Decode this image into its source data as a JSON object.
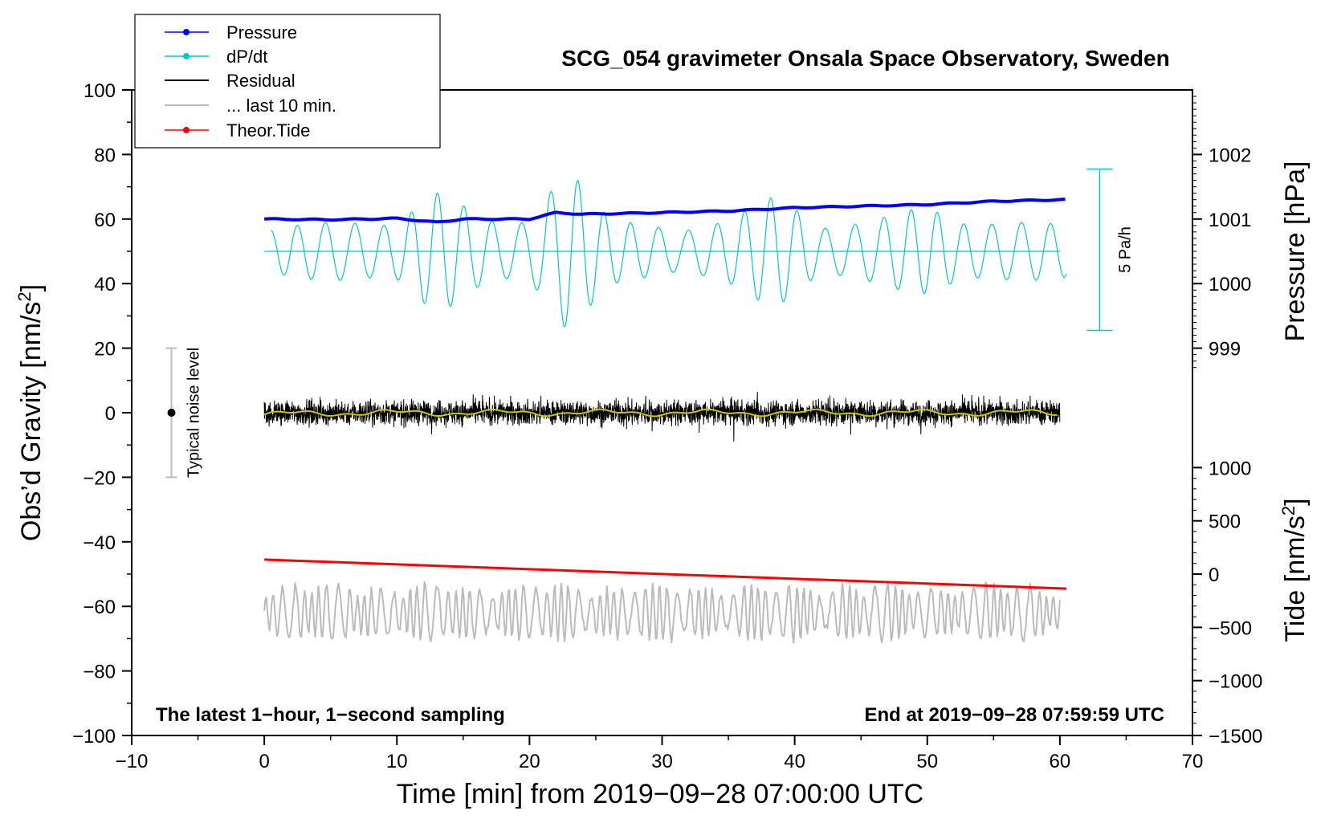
{
  "chart_data": {
    "type": "line",
    "title": "SCG_054 gravimeter Onsala Space Observatory, Sweden",
    "xlabel": "Time [min] from 2019−09−28 07:00:00 UTC",
    "ylabel_left_prefix": "Obs’d Gravity [nm/s",
    "ylabel_left_sup": "2",
    "ylabel_left_suffix": "]",
    "ylabel_right_top": "Pressure [hPa]",
    "ylabel_right_bottom_prefix": "Tide [nm/s",
    "ylabel_right_bottom_sup": "2",
    "ylabel_right_bottom_suffix": "]",
    "xlim": [
      -10,
      70
    ],
    "ylim": [
      -100,
      100
    ],
    "x_ticks": [
      -10,
      0,
      10,
      20,
      30,
      40,
      50,
      60,
      70
    ],
    "x_tick_labels": [
      "−10",
      "0",
      "10",
      "20",
      "30",
      "40",
      "50",
      "60",
      "70"
    ],
    "y_ticks": [
      -100,
      -80,
      -60,
      -40,
      -20,
      0,
      20,
      40,
      60,
      80,
      100
    ],
    "y_tick_labels": [
      "−100",
      "−80",
      "−60",
      "−40",
      "−20",
      "0",
      "20",
      "40",
      "60",
      "80",
      "100"
    ],
    "pressure_axis": {
      "ticks_hpa": [
        999,
        1000,
        1001,
        1002
      ],
      "tick_labels": [
        "999",
        "1000",
        "1001",
        "1002"
      ],
      "gravity_at_ticks": [
        20,
        40,
        60,
        80
      ]
    },
    "tide_axis": {
      "ticks": [
        -1500,
        -1000,
        -500,
        0,
        500,
        1000
      ],
      "tick_labels": [
        "−1500",
        "−1000",
        "−500",
        "0",
        "500",
        "1000"
      ],
      "gravity_at_ticks": [
        -100,
        -83,
        -66.5,
        -50,
        -33.5,
        -17
      ]
    },
    "legend": [
      {
        "label": "Pressure",
        "color": "#0000ff",
        "marker": true
      },
      {
        "label": "dP/dt",
        "color": "#00c8c8",
        "marker": true
      },
      {
        "label": "Residual",
        "color": "#000000",
        "marker": false
      },
      {
        "label": "... last 10 min.",
        "color": "#bbbbbb",
        "marker": false
      },
      {
        "label": "Theor.Tide",
        "color": "#ff0000",
        "marker": true
      }
    ],
    "series": [
      {
        "name": "Pressure",
        "color": "#0000ff",
        "x": [
          0,
          5,
          10,
          13,
          15,
          20,
          22,
          24,
          30,
          35,
          40,
          45,
          50,
          55,
          60
        ],
        "y": [
          60,
          59.8,
          60.2,
          59,
          60,
          60,
          62,
          61.5,
          62,
          62.5,
          63.5,
          64,
          64.5,
          65.5,
          66
        ]
      },
      {
        "name": "dP/dt",
        "color": "#00c8c8",
        "baseline": 50,
        "x_start": 0.5,
        "x_end": 60.5
      },
      {
        "name": "Residual",
        "color": "#000000",
        "center": 0,
        "amplitude": 8,
        "x_start": 0,
        "x_end": 60
      },
      {
        "name": "Residual smoothed",
        "color": "#c8c800",
        "center": 0
      },
      {
        "name": "... last 10 min.",
        "color": "#bbbbbb",
        "center": -62,
        "x_start": 0,
        "x_end": 60
      },
      {
        "name": "Theor.Tide",
        "color": "#ff0000",
        "x": [
          0,
          60.5
        ],
        "y": [
          -45.5,
          -54.5
        ]
      }
    ],
    "dpdt_scale_bar": {
      "label": "5 Pa/h",
      "x": 63,
      "y_top": 75.5,
      "y_bottom": 25.5
    },
    "noise_bar": {
      "label": "Typical noise level",
      "x": -7,
      "y_center": 0,
      "y_top": 20,
      "y_bottom": -20
    }
  },
  "notes": {
    "bottom_left": "The latest 1−hour, 1−second sampling",
    "bottom_right": "End at 2019−09−28 07:59:59 UTC"
  },
  "colors": {
    "pressure": "#0000ff",
    "dpdt": "#00c8c8",
    "residual": "#000000",
    "smoothed": "#c8c800",
    "last10": "#bbbbbb",
    "tide": "#ff0000"
  }
}
